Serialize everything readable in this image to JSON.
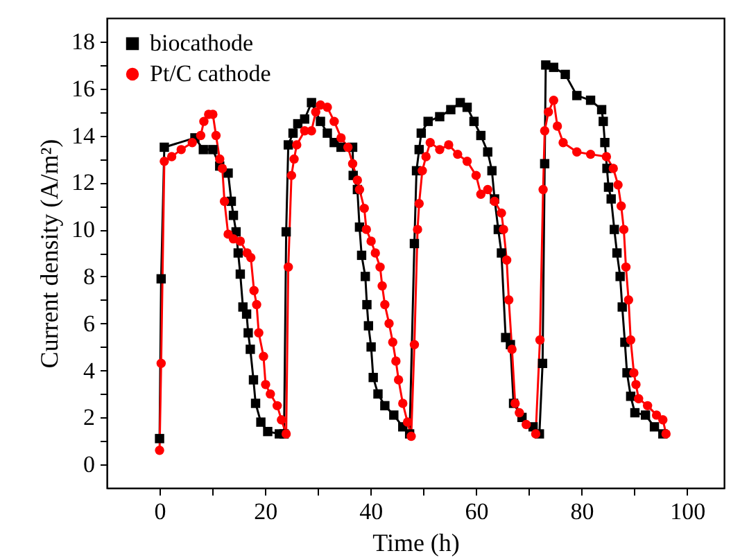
{
  "chart_data": {
    "type": "line",
    "xlabel": "Time (h)",
    "ylabel": "Current density (A/m²)",
    "xlim": [
      -10,
      107
    ],
    "ylim": [
      -1,
      19
    ],
    "xticks": [
      0,
      {
        "value": 10,
        "label": null
      },
      20,
      {
        "value": 30,
        "label": null
      },
      40,
      {
        "value": 50,
        "label": null
      },
      60,
      {
        "value": 70,
        "label": null
      },
      80,
      {
        "value": 90,
        "label": null
      },
      100
    ],
    "yticks": [
      0,
      {
        "value": 1,
        "label": null
      },
      2,
      {
        "value": 3,
        "label": null
      },
      4,
      {
        "value": 5,
        "label": null
      },
      6,
      {
        "value": 7,
        "label": null
      },
      8,
      {
        "value": 9,
        "label": null
      },
      10,
      {
        "value": 11,
        "label": null
      },
      12,
      {
        "value": 13,
        "label": null
      },
      14,
      {
        "value": 15,
        "label": null
      },
      16,
      {
        "value": 17,
        "label": null
      },
      18
    ],
    "grid": false,
    "legend": "top left",
    "line_style": "solid",
    "series": [
      {
        "name": "biocathode",
        "color": "#000000",
        "marker": "square",
        "x": [
          0,
          0.3,
          0.9,
          6.7,
          8.3,
          10.1,
          11.4,
          13.0,
          13.6,
          14.0,
          14.5,
          14.9,
          15.3,
          15.8,
          16.5,
          16.8,
          17.2,
          17.8,
          18.2,
          19.2,
          20.5,
          22.7,
          23.6,
          24.0,
          24.4,
          25.3,
          26.2,
          27.5,
          28.8,
          30.5,
          31.8,
          33.1,
          34.4,
          36.6,
          36.7,
          37.5,
          37.9,
          38.3,
          39.0,
          39.3,
          39.6,
          40.1,
          40.5,
          41.4,
          42.7,
          44.4,
          46.1,
          47.4,
          48.3,
          48.7,
          49.2,
          49.6,
          50.9,
          53.1,
          55.2,
          57.0,
          58.3,
          59.6,
          60.9,
          62.2,
          63.0,
          63.5,
          64.2,
          64.8,
          65.6,
          66.5,
          67.1,
          68.7,
          70.8,
          72.0,
          72.6,
          73.0,
          73.2,
          74.7,
          76.9,
          79.1,
          81.7,
          83.8,
          84.1,
          84.4,
          84.8,
          85.1,
          85.6,
          86.2,
          86.7,
          87.3,
          87.7,
          88.2,
          88.6,
          89.3,
          90.1,
          92.1,
          93.8,
          95.4
        ],
        "values": [
          1.1,
          7.9,
          13.5,
          13.9,
          13.4,
          13.4,
          12.7,
          12.4,
          11.2,
          10.6,
          9.9,
          9.0,
          8.1,
          6.7,
          6.4,
          5.6,
          4.9,
          3.6,
          2.6,
          1.8,
          1.4,
          1.3,
          1.3,
          9.9,
          13.6,
          14.1,
          14.5,
          14.7,
          15.4,
          14.6,
          14.1,
          13.7,
          13.5,
          13.5,
          12.3,
          11.7,
          10.1,
          8.9,
          8.0,
          6.8,
          5.9,
          5.0,
          3.7,
          3.0,
          2.5,
          2.1,
          1.6,
          1.3,
          9.4,
          12.5,
          13.4,
          14.1,
          14.6,
          14.8,
          15.1,
          15.4,
          15.2,
          14.6,
          14.0,
          13.3,
          12.5,
          11.3,
          10.0,
          9.0,
          5.4,
          5.1,
          2.6,
          2.0,
          1.6,
          1.3,
          4.3,
          12.8,
          17.0,
          16.9,
          16.6,
          15.7,
          15.5,
          15.1,
          14.6,
          13.7,
          12.6,
          11.8,
          11.3,
          10.0,
          9.0,
          8.0,
          6.7,
          5.2,
          3.9,
          2.9,
          2.2,
          2.1,
          1.6,
          1.3
        ]
      },
      {
        "name": "Pt/C cathode",
        "color": "#ff0000",
        "marker": "circle",
        "x": [
          0,
          0.3,
          0.9,
          2.3,
          4.1,
          6.2,
          7.8,
          8.4,
          9.3,
          10.1,
          10.7,
          11.4,
          11.9,
          12.3,
          13.0,
          14.0,
          15.3,
          16.6,
          17.3,
          17.9,
          18.4,
          18.8,
          19.7,
          20.1,
          21.0,
          22.3,
          23.1,
          24.0,
          24.4,
          25.0,
          25.5,
          26.0,
          27.5,
          28.8,
          29.6,
          30.5,
          31.8,
          33.1,
          34.4,
          35.7,
          36.6,
          37.5,
          37.9,
          38.8,
          39.2,
          40.1,
          40.9,
          41.8,
          42.2,
          42.7,
          43.5,
          44.2,
          44.8,
          45.3,
          46.1,
          47.0,
          47.7,
          48.3,
          48.9,
          49.2,
          49.8,
          50.5,
          51.3,
          53.1,
          54.8,
          56.5,
          58.3,
          60.0,
          60.9,
          62.2,
          63.5,
          64.8,
          65.2,
          65.8,
          66.2,
          66.8,
          67.4,
          68.2,
          69.5,
          71.3,
          72.1,
          72.7,
          73.0,
          73.7,
          74.7,
          75.4,
          76.5,
          79.1,
          81.7,
          84.7,
          86.0,
          86.9,
          87.5,
          88.0,
          88.4,
          88.9,
          89.3,
          89.9,
          90.3,
          90.8,
          92.5,
          94.2,
          95.4,
          96.0
        ],
        "values": [
          0.6,
          4.3,
          12.9,
          13.1,
          13.4,
          13.7,
          14.0,
          14.6,
          14.9,
          14.9,
          14.0,
          13.0,
          12.6,
          11.2,
          9.8,
          9.6,
          9.5,
          9.0,
          8.8,
          7.4,
          6.8,
          5.6,
          4.6,
          3.4,
          3.0,
          2.5,
          1.9,
          1.3,
          8.4,
          12.3,
          13.0,
          13.6,
          14.2,
          14.2,
          15.0,
          15.3,
          15.2,
          14.6,
          13.9,
          13.5,
          12.8,
          12.1,
          11.7,
          10.9,
          10.0,
          9.5,
          9.0,
          8.4,
          7.6,
          6.8,
          6.0,
          5.2,
          4.4,
          3.6,
          2.6,
          1.8,
          1.2,
          5.1,
          10.0,
          11.1,
          12.5,
          13.1,
          13.7,
          13.4,
          13.6,
          13.2,
          12.9,
          12.3,
          11.5,
          11.7,
          11.2,
          10.7,
          10.0,
          8.7,
          7.0,
          4.9,
          2.6,
          2.2,
          1.7,
          1.3,
          5.3,
          11.7,
          14.2,
          15.0,
          15.5,
          14.4,
          13.7,
          13.3,
          13.2,
          13.1,
          12.6,
          11.9,
          11.0,
          10.0,
          8.4,
          7.0,
          5.3,
          3.9,
          3.4,
          2.8,
          2.5,
          2.1,
          1.9,
          1.3
        ]
      }
    ]
  }
}
